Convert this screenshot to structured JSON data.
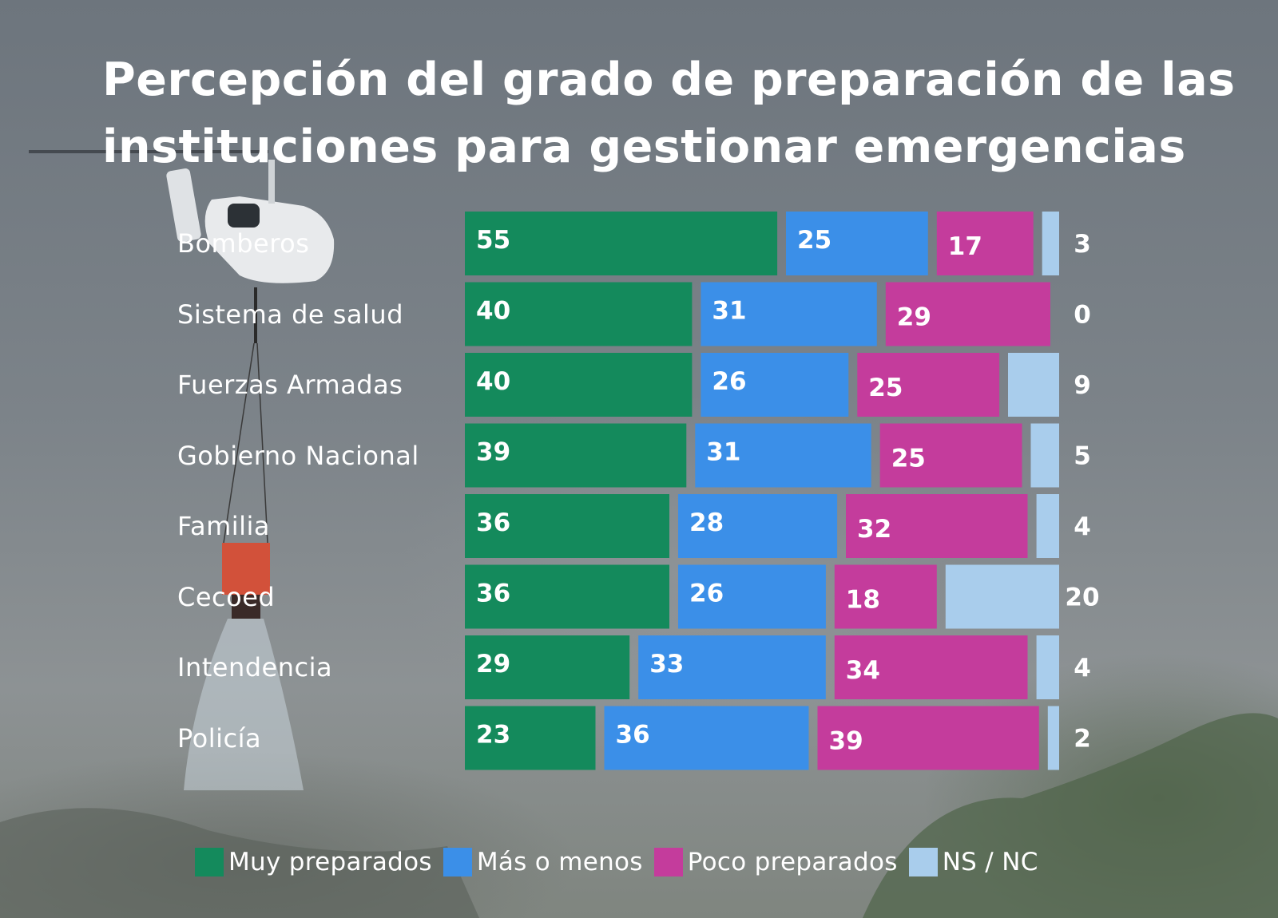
{
  "title_lines": [
    "Percepción del grado de preparación de las",
    "instituciones para gestionar emergencias"
  ],
  "colors": {
    "muy_preparados": "#148a5c",
    "mas_o_menos": "#3b8fe8",
    "poco_preparados": "#c43c9c",
    "ns_nc": "#a9cdec"
  },
  "chart_data": {
    "type": "bar",
    "orientation": "horizontal",
    "stacked": true,
    "title": "Percepción del grado de preparación de las instituciones para gestionar emergencias",
    "categories": [
      "Bomberos",
      "Sistema de salud",
      "Fuerzas Armadas",
      "Gobierno Nacional",
      "Familia",
      "Cecoed",
      "Intendencia",
      "Policía"
    ],
    "series": [
      {
        "name": "Muy preparados",
        "color": "#148a5c",
        "values": [
          55,
          40,
          40,
          39,
          36,
          36,
          29,
          23
        ]
      },
      {
        "name": "Más o menos",
        "color": "#3b8fe8",
        "values": [
          25,
          31,
          26,
          31,
          28,
          26,
          33,
          36
        ]
      },
      {
        "name": "Poco preparados",
        "color": "#c43c9c",
        "values": [
          17,
          29,
          25,
          25,
          32,
          18,
          34,
          39
        ]
      },
      {
        "name": "NS / NC",
        "color": "#a9cdec",
        "values": [
          3,
          0,
          9,
          5,
          4,
          20,
          4,
          2
        ]
      }
    ],
    "xlim": [
      0,
      100
    ],
    "legend_position": "bottom"
  },
  "legend": [
    {
      "label": "Muy preparados",
      "color": "#148a5c"
    },
    {
      "label": "Más o menos",
      "color": "#3b8fe8"
    },
    {
      "label": "Poco preparados",
      "color": "#c43c9c"
    },
    {
      "label": "NS / NC",
      "color": "#a9cdec"
    }
  ]
}
